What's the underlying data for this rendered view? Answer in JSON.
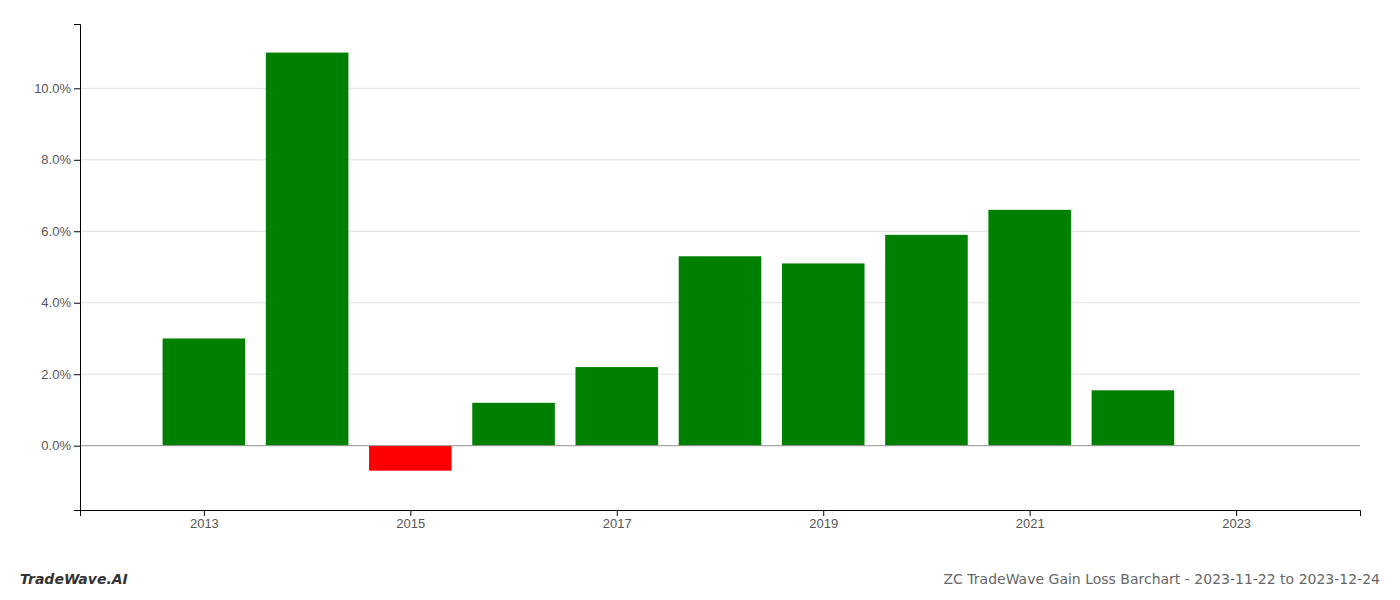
{
  "chart_data": {
    "type": "bar",
    "title": "ZC TradeWave Gain Loss Barchart - 2023-11-22 to 2023-12-24",
    "annotations": [
      "TradeWave.AI"
    ],
    "x": [
      2013,
      2014,
      2015,
      2016,
      2017,
      2018,
      2019,
      2020,
      2021,
      2022
    ],
    "values": [
      0.03,
      0.11,
      -0.007,
      0.012,
      0.022,
      0.053,
      0.051,
      0.059,
      0.066,
      0.0155
    ],
    "colors": [
      "#008000",
      "#008000",
      "#ff0000",
      "#008000",
      "#008000",
      "#008000",
      "#008000",
      "#008000",
      "#008000",
      "#008000"
    ],
    "xlim": [
      2011.8,
      2024.2
    ],
    "xticks": [
      2013,
      2015,
      2017,
      2019,
      2021,
      2023
    ],
    "ylim": [
      -0.018,
      0.118
    ],
    "yticks": [
      {
        "value": 0.0,
        "label": "0.0%"
      },
      {
        "value": 0.02,
        "label": "2.0%"
      },
      {
        "value": 0.04,
        "label": "4.0%"
      },
      {
        "value": 0.06,
        "label": "6.0%"
      },
      {
        "value": 0.08,
        "label": "8.0%"
      },
      {
        "value": 0.1,
        "label": "10.0%"
      }
    ],
    "grid": true
  }
}
